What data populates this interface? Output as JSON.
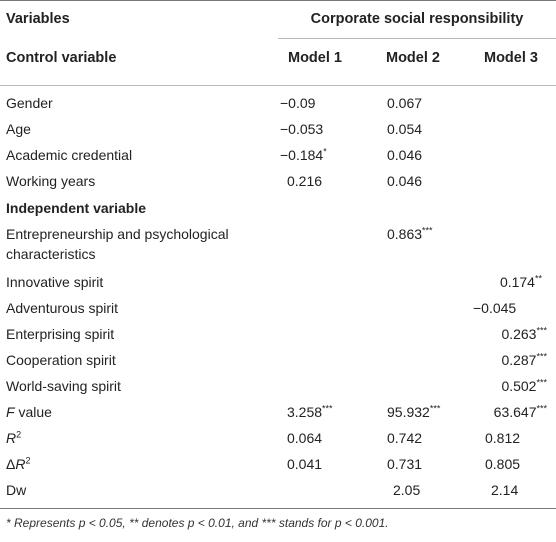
{
  "header": {
    "variables": "Variables",
    "group": "Corporate social responsibility",
    "control": "Control variable",
    "models": [
      "Model 1",
      "Model 2",
      "Model 3"
    ]
  },
  "rows": [
    {
      "label": "Gender",
      "m1": "−0.09",
      "m2": "0.067",
      "m3": ""
    },
    {
      "label": "Age",
      "m1": "−0.053",
      "m2": "0.054",
      "m3": ""
    },
    {
      "label": "Academic credential",
      "m1": "−0.184*",
      "m2": "0.046",
      "m3": ""
    },
    {
      "label": "Working years",
      "m1": "0.216",
      "m2": "0.046",
      "m3": ""
    },
    {
      "label": "Independent variable",
      "section": true
    },
    {
      "label": "Entrepreneurship and psychological",
      "label2": "characteristics",
      "m1": "",
      "m2": "0.863***",
      "m3": ""
    },
    {
      "label": "Innovative spirit",
      "m1": "",
      "m2": "",
      "m3": "0.174**"
    },
    {
      "label": "Adventurous spirit",
      "m1": "",
      "m2": "",
      "m3": "−0.045"
    },
    {
      "label": "Enterprising spirit",
      "m1": "",
      "m2": "",
      "m3": "0.263***"
    },
    {
      "label": "Cooperation spirit",
      "m1": "",
      "m2": "",
      "m3": "0.287***"
    },
    {
      "label": "World-saving spirit",
      "m1": "",
      "m2": "",
      "m3": "0.502***"
    },
    {
      "label": "F value",
      "m1": "3.258***",
      "m2": "95.932***",
      "m3": "63.647***"
    },
    {
      "label": "R2",
      "m1": "0.064",
      "m2": "0.742",
      "m3": "0.812"
    },
    {
      "label": "ΔR2",
      "m1": "0.041",
      "m2": "0.731",
      "m3": "0.805"
    },
    {
      "label": "Dw",
      "m1": "",
      "m2": "2.05",
      "m3": "2.14"
    }
  ],
  "footnote": "* Represents p < 0.05, ** denotes p < 0.01, and *** stands for p < 0.001."
}
